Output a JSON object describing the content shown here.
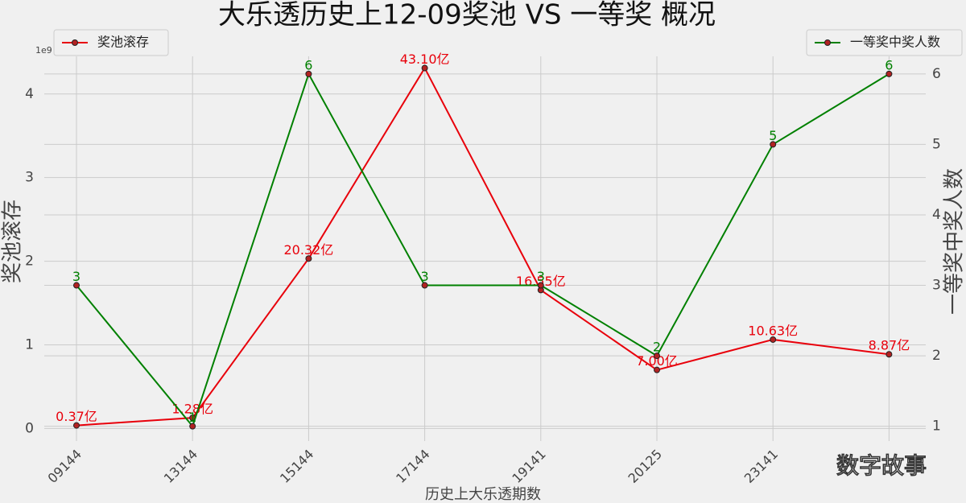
{
  "chart_data": {
    "type": "line",
    "title": "大乐透历史上12-09奖池 VS 一等奖 概况",
    "x_label": "历史上大乐透期数",
    "y_label": "奖池滚存",
    "y2_label": "一等奖中奖人数",
    "y_offset_label": "1e9",
    "watermark": "数字故事",
    "categories": [
      "09144",
      "13144",
      "15144",
      "17144",
      "19141",
      "20125",
      "23141",
      null
    ],
    "series": [
      {
        "name": "奖池滚存",
        "color": "#e8000b",
        "label_color": "#e8000b",
        "values": [
          0.037,
          0.128,
          2.032,
          4.31,
          1.655,
          0.7,
          1.063,
          0.887
        ],
        "value_labels": [
          "0.37亿",
          "1.28亿",
          "20.32亿",
          "43.10亿",
          "16.55亿",
          "7.00亿",
          "10.63亿",
          "8.87亿"
        ]
      },
      {
        "name": "一等奖中奖人数",
        "color": "#008000",
        "label_color": "#008000",
        "axis": "y2",
        "values": [
          3,
          1,
          6,
          3,
          3,
          2,
          5,
          6
        ]
      }
    ],
    "ylim": [
      -0.15,
      4.45
    ],
    "yticks": [
      0,
      1,
      2,
      3,
      4
    ],
    "y2lim": [
      0.79,
      6.25
    ],
    "y2ticks": [
      1,
      2,
      3,
      4,
      5,
      6
    ],
    "grid": true,
    "legend": "upper left",
    "legend2": "upper right"
  }
}
